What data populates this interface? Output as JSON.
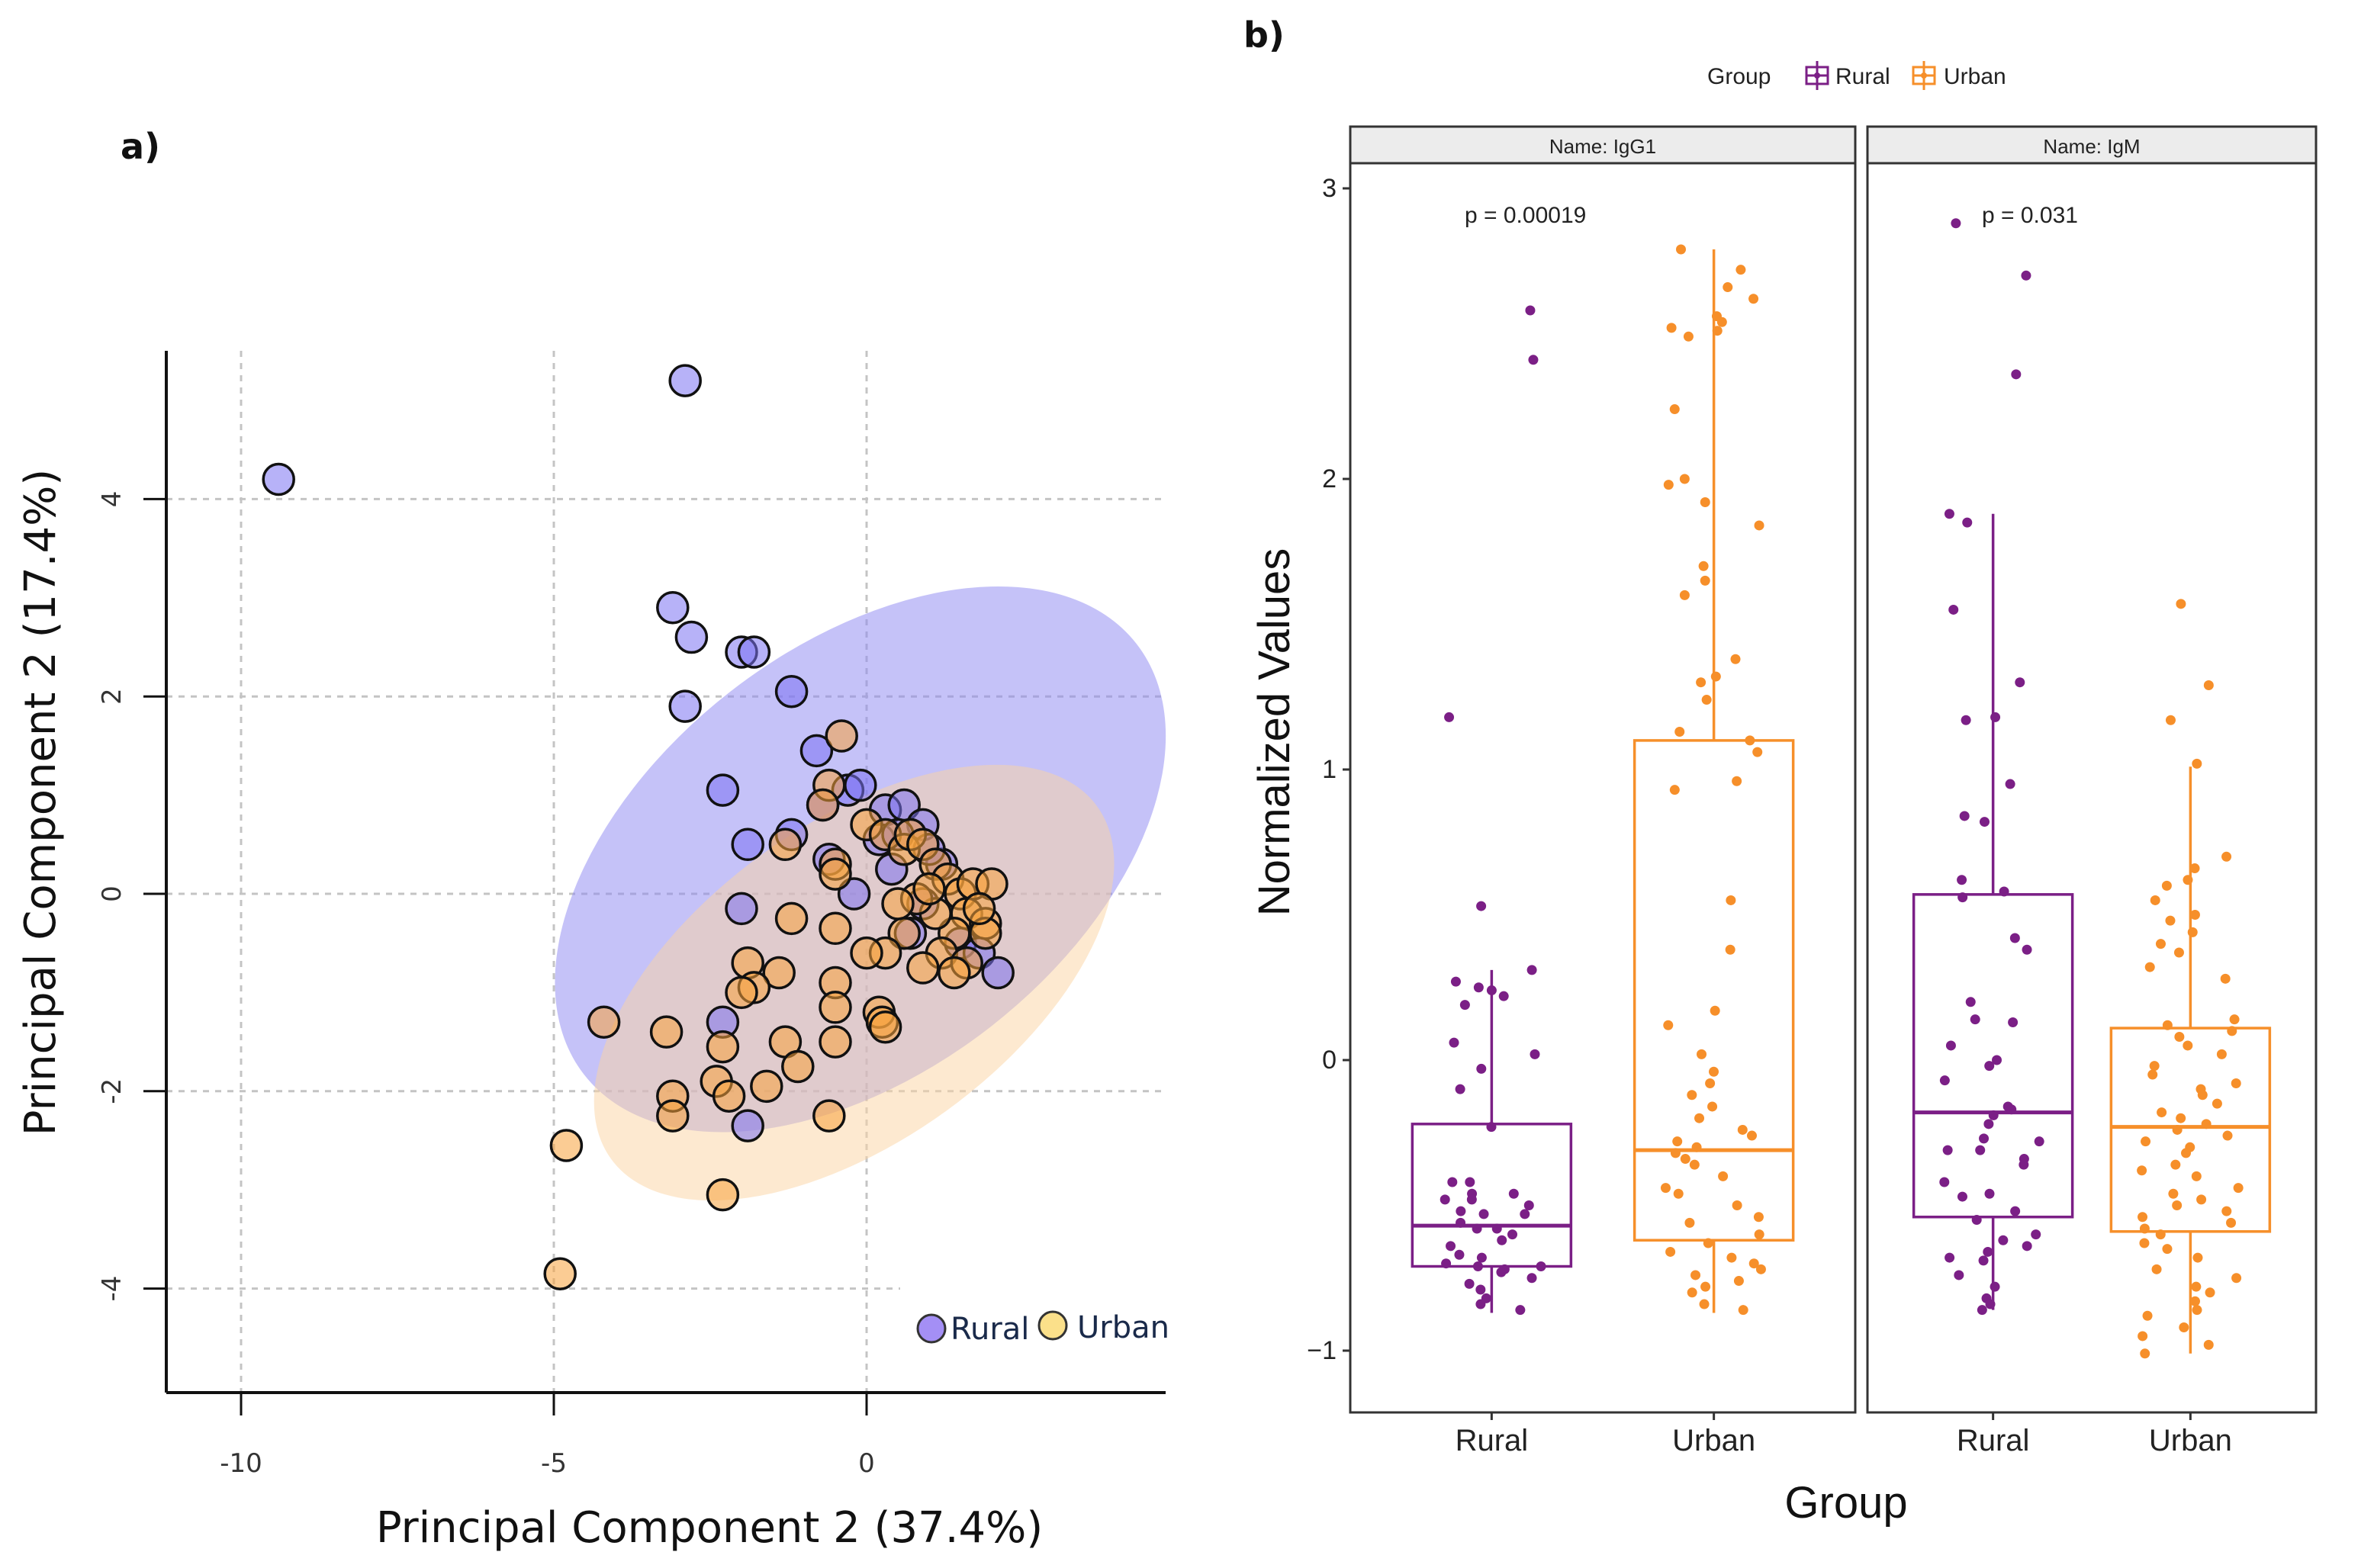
{
  "figure": {
    "panel_a_label": "a)",
    "panel_b_label": "b)"
  },
  "chart_data": [
    {
      "type": "scatter",
      "panel": "a",
      "title": "",
      "xlabel": "Principal Component 2 (37.4%)",
      "ylabel": "Principal Component 2 (17.4%)",
      "xlim": [
        -11.9,
        4.1
      ],
      "ylim": [
        -5.1,
        5.5
      ],
      "xticks": [
        -10,
        -5,
        0
      ],
      "xtick_labels": [
        "-10",
        "-5",
        "0"
      ],
      "yticks": [
        -4,
        -2,
        0,
        2,
        4
      ],
      "ytick_labels": [
        "-4",
        "-2",
        "0",
        "2",
        "4"
      ],
      "grid": true,
      "legend": {
        "position": "bottom-right",
        "entries": [
          {
            "label": "Rural",
            "color": "#9f8cf5"
          },
          {
            "label": "Urban",
            "color": "#fbe08a"
          }
        ]
      },
      "series": [
        {
          "name": "Rural",
          "color": "#7b72f2",
          "ellipse": {
            "cx": -0.1,
            "cy": 0.35,
            "rx": 5.6,
            "ry": 2.15,
            "angle_deg": -38,
            "fill": "#8c86f2"
          },
          "points": [
            [
              -9.4,
              4.2
            ],
            [
              -2.9,
              5.2
            ],
            [
              -3.1,
              2.9
            ],
            [
              -2.8,
              2.6
            ],
            [
              -2.0,
              2.45
            ],
            [
              -1.8,
              2.45
            ],
            [
              -1.2,
              2.05
            ],
            [
              -2.9,
              1.9
            ],
            [
              -0.8,
              1.45
            ],
            [
              -2.3,
              1.05
            ],
            [
              -1.2,
              0.6
            ],
            [
              -1.9,
              0.5
            ],
            [
              -0.6,
              0.35
            ],
            [
              -2.0,
              -0.15
            ],
            [
              -0.3,
              1.05
            ],
            [
              -0.1,
              1.1
            ],
            [
              0.3,
              0.85
            ],
            [
              0.6,
              0.9
            ],
            [
              0.2,
              0.55
            ],
            [
              0.9,
              0.7
            ],
            [
              0.4,
              0.25
            ],
            [
              -0.2,
              0.0
            ],
            [
              0.7,
              -0.4
            ],
            [
              1.5,
              -0.5
            ],
            [
              1.8,
              -0.6
            ],
            [
              2.1,
              -0.8
            ],
            [
              1.2,
              0.3
            ],
            [
              0.9,
              -0.1
            ],
            [
              -2.3,
              -1.3
            ],
            [
              -1.9,
              -2.35
            ],
            [
              0.5,
              0.6
            ],
            [
              1.0,
              0.45
            ],
            [
              -0.7,
              0.9
            ]
          ]
        },
        {
          "name": "Urban",
          "color": "#f7a23c",
          "ellipse": {
            "cx": -0.2,
            "cy": -0.9,
            "rx": 4.8,
            "ry": 1.6,
            "angle_deg": -36,
            "fill": "#fbd3a2"
          },
          "points": [
            [
              -0.4,
              1.6
            ],
            [
              -0.6,
              1.1
            ],
            [
              -0.7,
              0.9
            ],
            [
              -0.5,
              0.3
            ],
            [
              -0.5,
              0.2
            ],
            [
              0.0,
              0.7
            ],
            [
              0.3,
              0.6
            ],
            [
              0.6,
              0.45
            ],
            [
              0.7,
              0.6
            ],
            [
              0.9,
              0.5
            ],
            [
              1.1,
              0.3
            ],
            [
              1.3,
              0.15
            ],
            [
              1.5,
              0.0
            ],
            [
              1.7,
              0.1
            ],
            [
              1.6,
              -0.2
            ],
            [
              1.9,
              -0.3
            ],
            [
              2.0,
              0.1
            ],
            [
              1.4,
              -0.4
            ],
            [
              1.1,
              -0.2
            ],
            [
              0.8,
              -0.05
            ],
            [
              1.2,
              -0.6
            ],
            [
              1.6,
              -0.7
            ],
            [
              0.9,
              -0.75
            ],
            [
              1.4,
              -0.8
            ],
            [
              1.9,
              -0.4
            ],
            [
              0.6,
              -0.4
            ],
            [
              0.5,
              -0.1
            ],
            [
              0.3,
              -0.6
            ],
            [
              1.8,
              -0.15
            ],
            [
              1.0,
              0.05
            ],
            [
              -1.3,
              0.5
            ],
            [
              -0.5,
              -0.35
            ],
            [
              -0.5,
              -0.9
            ],
            [
              -0.5,
              -1.15
            ],
            [
              -0.5,
              -1.5
            ],
            [
              -1.4,
              -0.8
            ],
            [
              -1.9,
              -0.7
            ],
            [
              -1.8,
              -0.95
            ],
            [
              -2.0,
              -1.0
            ],
            [
              -1.3,
              -1.5
            ],
            [
              -1.6,
              -1.95
            ],
            [
              -1.1,
              -1.75
            ],
            [
              -2.3,
              -1.55
            ],
            [
              -2.4,
              -1.9
            ],
            [
              -2.2,
              -2.05
            ],
            [
              -3.2,
              -1.4
            ],
            [
              -3.1,
              -2.05
            ],
            [
              -3.1,
              -2.25
            ],
            [
              -4.2,
              -1.3
            ],
            [
              -4.8,
              -2.55
            ],
            [
              -2.3,
              -3.05
            ],
            [
              -4.9,
              -3.85
            ],
            [
              -0.6,
              -2.25
            ],
            [
              0.2,
              -1.2
            ],
            [
              0.25,
              -1.3
            ],
            [
              0.3,
              -1.35
            ],
            [
              0.0,
              -0.6
            ],
            [
              -1.2,
              -0.25
            ]
          ]
        }
      ]
    },
    {
      "type": "box",
      "panel": "b",
      "title": "",
      "xlabel": "Group",
      "ylabel": "Normalized Values",
      "ylim": [
        -1.2,
        3.05
      ],
      "yticks": [
        -1,
        0,
        1,
        2,
        3
      ],
      "ytick_labels": [
        "-1",
        "0",
        "1",
        "2",
        "3"
      ],
      "categories": [
        "Rural",
        "Urban"
      ],
      "legend": {
        "title": "Group",
        "position": "top",
        "entries": [
          {
            "label": "Rural",
            "color": "#7b1f86"
          },
          {
            "label": "Urban",
            "color": "#f68f2a"
          }
        ]
      },
      "facets": [
        {
          "strip_label": "Name: IgG1",
          "p_value_label": "p = 0.00019",
          "boxes": [
            {
              "group": "Rural",
              "color": "#7b1f86",
              "whisker_low": -0.87,
              "q1": -0.71,
              "median": -0.57,
              "q3": -0.22,
              "whisker_high": 0.31,
              "points": [
                2.58,
                2.41,
                1.18,
                0.53,
                0.31,
                0.27,
                0.25,
                0.24,
                0.22,
                0.19,
                0.06,
                0.02,
                -0.03,
                -0.1,
                -0.23,
                -0.42,
                -0.42,
                -0.46,
                -0.46,
                -0.48,
                -0.48,
                -0.5,
                -0.52,
                -0.53,
                -0.53,
                -0.56,
                -0.58,
                -0.58,
                -0.6,
                -0.62,
                -0.64,
                -0.67,
                -0.68,
                -0.7,
                -0.71,
                -0.71,
                -0.72,
                -0.73,
                -0.75,
                -0.77,
                -0.79,
                -0.82,
                -0.84,
                -0.86
              ]
            },
            {
              "group": "Urban",
              "color": "#f68f2a",
              "whisker_low": -0.87,
              "q1": -0.62,
              "median": -0.31,
              "q3": 1.1,
              "whisker_high": 2.79,
              "points": [
                2.79,
                2.72,
                2.66,
                2.62,
                2.56,
                2.54,
                2.52,
                2.51,
                2.49,
                2.24,
                2.0,
                1.98,
                1.92,
                1.84,
                1.7,
                1.65,
                1.6,
                1.38,
                1.32,
                1.3,
                1.24,
                1.13,
                1.1,
                1.06,
                0.96,
                0.93,
                0.55,
                0.38,
                0.17,
                0.12,
                0.02,
                -0.04,
                -0.08,
                -0.12,
                -0.16,
                -0.2,
                -0.24,
                -0.26,
                -0.28,
                -0.3,
                -0.32,
                -0.34,
                -0.36,
                -0.4,
                -0.44,
                -0.46,
                -0.5,
                -0.54,
                -0.56,
                -0.6,
                -0.63,
                -0.66,
                -0.68,
                -0.7,
                -0.72,
                -0.74,
                -0.76,
                -0.78,
                -0.8,
                -0.84,
                -0.86
              ]
            }
          ]
        },
        {
          "strip_label": "Name: IgM",
          "p_value_label": "p = 0.031",
          "boxes": [
            {
              "group": "Rural",
              "color": "#7b1f86",
              "whisker_low": -0.86,
              "q1": -0.54,
              "median": -0.18,
              "q3": 0.57,
              "whisker_high": 1.88,
              "points": [
                2.88,
                2.7,
                2.36,
                1.88,
                1.85,
                1.55,
                1.3,
                1.17,
                1.18,
                0.95,
                0.84,
                0.82,
                0.62,
                0.58,
                0.56,
                0.42,
                0.38,
                0.2,
                0.13,
                0.14,
                0.05,
                0.0,
                -0.02,
                -0.07,
                -0.16,
                -0.17,
                -0.19,
                -0.22,
                -0.27,
                -0.28,
                -0.31,
                -0.31,
                -0.34,
                -0.36,
                -0.42,
                -0.46,
                -0.47,
                -0.52,
                -0.55,
                -0.6,
                -0.62,
                -0.64,
                -0.66,
                -0.68,
                -0.69,
                -0.74,
                -0.78,
                -0.82,
                -0.84,
                -0.86
              ]
            },
            {
              "group": "Urban",
              "color": "#f68f2a",
              "whisker_low": -1.01,
              "q1": -0.59,
              "median": -0.23,
              "q3": 0.11,
              "whisker_high": 1.01,
              "points": [
                1.57,
                1.29,
                1.17,
                1.02,
                0.7,
                0.66,
                0.62,
                0.6,
                0.55,
                0.5,
                0.48,
                0.44,
                0.4,
                0.37,
                0.32,
                0.28,
                0.14,
                0.12,
                0.1,
                0.08,
                0.05,
                0.02,
                -0.02,
                -0.05,
                -0.08,
                -0.1,
                -0.12,
                -0.15,
                -0.18,
                -0.2,
                -0.22,
                -0.24,
                -0.26,
                -0.28,
                -0.3,
                -0.32,
                -0.36,
                -0.38,
                -0.4,
                -0.44,
                -0.46,
                -0.48,
                -0.5,
                -0.52,
                -0.54,
                -0.56,
                -0.58,
                -0.6,
                -0.63,
                -0.65,
                -0.68,
                -0.72,
                -0.75,
                -0.78,
                -0.8,
                -0.83,
                -0.86,
                -0.88,
                -0.92,
                -0.95,
                -0.98,
                -1.01
              ]
            }
          ]
        }
      ]
    }
  ]
}
